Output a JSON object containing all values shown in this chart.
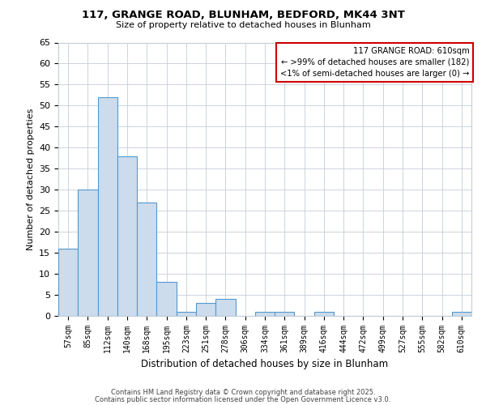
{
  "title": "117, GRANGE ROAD, BLUNHAM, BEDFORD, MK44 3NT",
  "subtitle": "Size of property relative to detached houses in Blunham",
  "xlabel": "Distribution of detached houses by size in Blunham",
  "ylabel": "Number of detached properties",
  "categories": [
    "57sqm",
    "85sqm",
    "112sqm",
    "140sqm",
    "168sqm",
    "195sqm",
    "223sqm",
    "251sqm",
    "278sqm",
    "306sqm",
    "334sqm",
    "361sqm",
    "389sqm",
    "416sqm",
    "444sqm",
    "472sqm",
    "499sqm",
    "527sqm",
    "555sqm",
    "582sqm",
    "610sqm"
  ],
  "values": [
    16,
    30,
    52,
    38,
    27,
    8,
    1,
    3,
    4,
    0,
    1,
    1,
    0,
    1,
    0,
    0,
    0,
    0,
    0,
    0,
    1
  ],
  "bar_color": "#ccdcec",
  "bar_edge_color": "#5599cc",
  "ylim": [
    0,
    65
  ],
  "yticks": [
    0,
    5,
    10,
    15,
    20,
    25,
    30,
    35,
    40,
    45,
    50,
    55,
    60,
    65
  ],
  "annotation_title": "117 GRANGE ROAD: 610sqm",
  "annotation_line1": "← >99% of detached houses are smaller (182)",
  "annotation_line2": "<1% of semi-detached houses are larger (0) →",
  "annotation_box_color": "#cc0000",
  "footer_line1": "Contains HM Land Registry data © Crown copyright and database right 2025.",
  "footer_line2": "Contains public sector information licensed under the Open Government Licence v3.0.",
  "background_color": "#ffffff",
  "grid_color": "#c5cdd8"
}
